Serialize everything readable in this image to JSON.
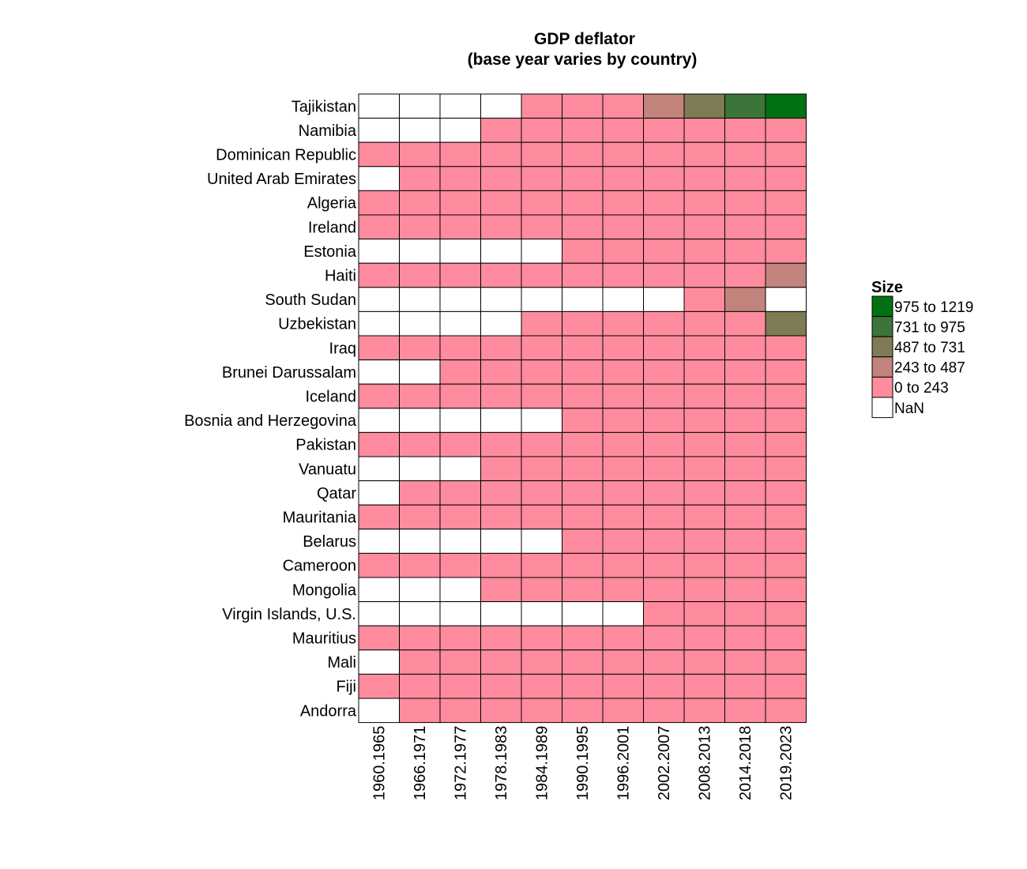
{
  "chart_data": {
    "type": "heatmap",
    "title": [
      "GDP deflator",
      "(base year varies by country)"
    ],
    "xlabel": "",
    "ylabel": "",
    "x": [
      "1960.1965",
      "1966.1971",
      "1972.1977",
      "1978.1983",
      "1984.1989",
      "1990.1995",
      "1996.2001",
      "2002.2007",
      "2008.2013",
      "2014.2018",
      "2019.2023"
    ],
    "y": [
      "Tajikistan",
      "Namibia",
      "Dominican Republic",
      "United Arab Emirates",
      "Algeria",
      "Ireland",
      "Estonia",
      "Haiti",
      "South Sudan",
      "Uzbekistan",
      "Iraq",
      "Brunei Darussalam",
      "Iceland",
      "Bosnia and Herzegovina",
      "Pakistan",
      "Vanuatu",
      "Qatar",
      "Mauritania",
      "Belarus",
      "Cameroon",
      "Mongolia",
      "Virgin Islands, U.S.",
      "Mauritius",
      "Mali",
      "Fiji",
      "Andorra"
    ],
    "bin_index_note": "cell values are legend bin indices: -1 = NaN, 0 = 0 to 243, 1 = 243 to 487, 2 = 487 to 731, 3 = 731 to 975, 4 = 975 to 1219",
    "cells": [
      [
        -1,
        -1,
        -1,
        -1,
        0,
        0,
        0,
        1,
        2,
        3,
        4
      ],
      [
        -1,
        -1,
        -1,
        0,
        0,
        0,
        0,
        0,
        0,
        0,
        0
      ],
      [
        0,
        0,
        0,
        0,
        0,
        0,
        0,
        0,
        0,
        0,
        0
      ],
      [
        -1,
        0,
        0,
        0,
        0,
        0,
        0,
        0,
        0,
        0,
        0
      ],
      [
        0,
        0,
        0,
        0,
        0,
        0,
        0,
        0,
        0,
        0,
        0
      ],
      [
        0,
        0,
        0,
        0,
        0,
        0,
        0,
        0,
        0,
        0,
        0
      ],
      [
        -1,
        -1,
        -1,
        -1,
        -1,
        0,
        0,
        0,
        0,
        0,
        0
      ],
      [
        0,
        0,
        0,
        0,
        0,
        0,
        0,
        0,
        0,
        0,
        1
      ],
      [
        -1,
        -1,
        -1,
        -1,
        -1,
        -1,
        -1,
        -1,
        0,
        1,
        -1
      ],
      [
        -1,
        -1,
        -1,
        -1,
        0,
        0,
        0,
        0,
        0,
        0,
        2
      ],
      [
        0,
        0,
        0,
        0,
        0,
        0,
        0,
        0,
        0,
        0,
        0
      ],
      [
        -1,
        -1,
        0,
        0,
        0,
        0,
        0,
        0,
        0,
        0,
        0
      ],
      [
        0,
        0,
        0,
        0,
        0,
        0,
        0,
        0,
        0,
        0,
        0
      ],
      [
        -1,
        -1,
        -1,
        -1,
        -1,
        0,
        0,
        0,
        0,
        0,
        0
      ],
      [
        0,
        0,
        0,
        0,
        0,
        0,
        0,
        0,
        0,
        0,
        0
      ],
      [
        -1,
        -1,
        -1,
        0,
        0,
        0,
        0,
        0,
        0,
        0,
        0
      ],
      [
        -1,
        0,
        0,
        0,
        0,
        0,
        0,
        0,
        0,
        0,
        0
      ],
      [
        0,
        0,
        0,
        0,
        0,
        0,
        0,
        0,
        0,
        0,
        0
      ],
      [
        -1,
        -1,
        -1,
        -1,
        -1,
        0,
        0,
        0,
        0,
        0,
        0
      ],
      [
        0,
        0,
        0,
        0,
        0,
        0,
        0,
        0,
        0,
        0,
        0
      ],
      [
        -1,
        -1,
        -1,
        0,
        0,
        0,
        0,
        0,
        0,
        0,
        0
      ],
      [
        -1,
        -1,
        -1,
        -1,
        -1,
        -1,
        -1,
        0,
        0,
        0,
        0
      ],
      [
        0,
        0,
        0,
        0,
        0,
        0,
        0,
        0,
        0,
        0,
        0
      ],
      [
        -1,
        0,
        0,
        0,
        0,
        0,
        0,
        0,
        0,
        0,
        0
      ],
      [
        0,
        0,
        0,
        0,
        0,
        0,
        0,
        0,
        0,
        0,
        0
      ],
      [
        -1,
        0,
        0,
        0,
        0,
        0,
        0,
        0,
        0,
        0,
        0
      ]
    ],
    "legend": {
      "title": "Size",
      "position": "right",
      "bins": [
        {
          "label": "975 to 1219",
          "color": "#007213"
        },
        {
          "label": "731 to 975",
          "color": "#3d7439"
        },
        {
          "label": "487 to 731",
          "color": "#7e7b55"
        },
        {
          "label": "243 to 487",
          "color": "#c2837c"
        },
        {
          "label": "0 to 243",
          "color": "#ff8c9e"
        },
        {
          "label": "NaN",
          "color": "#ffffff"
        }
      ]
    },
    "nan_color": "#ffffff",
    "cell_border_color": "#000000"
  }
}
